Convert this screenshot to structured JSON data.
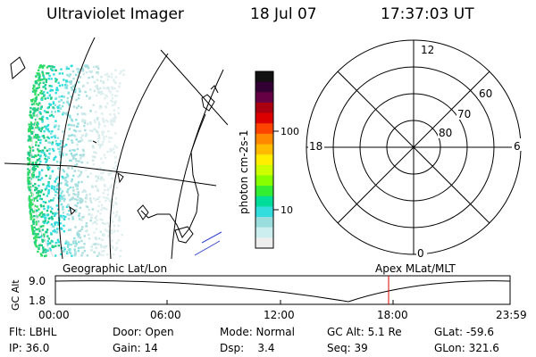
{
  "header": {
    "title": "Ultraviolet Imager",
    "date": "18 Jul 07",
    "time": "17:37:03 UT"
  },
  "colorbar": {
    "label": "photon cm-2s-1",
    "tick_100": "100",
    "tick_10": "10",
    "colors": [
      "#111111",
      "#330033",
      "#660044",
      "#aa0011",
      "#dd0000",
      "#ff4400",
      "#ff8800",
      "#ffbb00",
      "#ffee00",
      "#ccff00",
      "#88ff00",
      "#33ee33",
      "#00dd99",
      "#33dddd",
      "#99dddd",
      "#cceeee",
      "#eeeeee"
    ]
  },
  "polar": {
    "label_top": "12",
    "label_bottom": "0",
    "label_left": "18",
    "label_right": "6",
    "ring_60": "60",
    "ring_70": "70",
    "ring_80": "80"
  },
  "frames": {
    "left_label": "Geographic Lat/Lon",
    "right_label": "Apex  MLat/MLT"
  },
  "timeline": {
    "axis_label": "GC Alt",
    "y_value": "9.0",
    "y_value_low": "1.8",
    "x_ticks": [
      "00:00",
      "06:00",
      "12:00",
      "18:00",
      "23:59"
    ],
    "marker_color": "#dd0000"
  },
  "info": {
    "flt": "Flt: LBHL",
    "ip": "IP: 36.0",
    "door": "Door: Open",
    "gain": "Gain: 14",
    "mode": "Mode: Normal",
    "dsp": "Dsp:    3.4",
    "gcalt": "GC Alt: 5.1 Re",
    "seq": "Seq: 39",
    "glat": "GLat: -59.6",
    "glon": "GLon: 321.6"
  }
}
